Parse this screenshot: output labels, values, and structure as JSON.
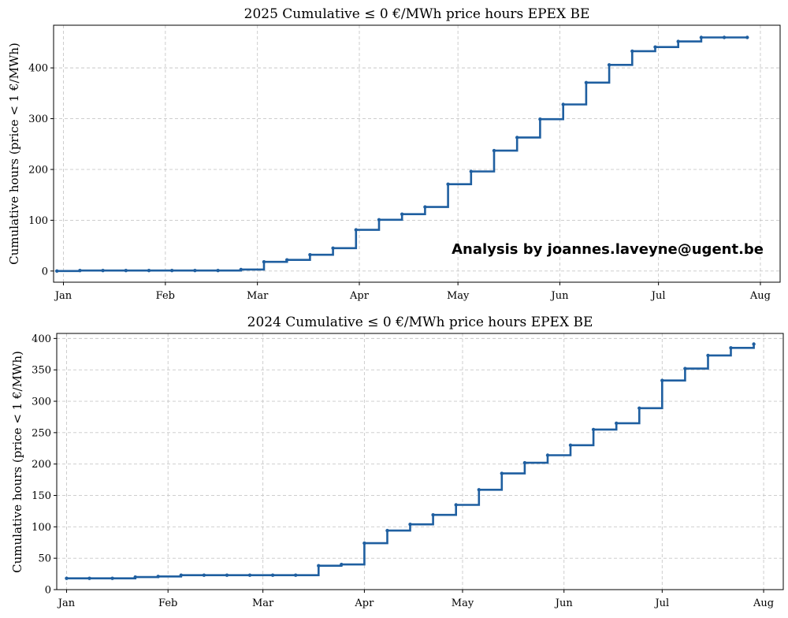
{
  "chart_data": [
    {
      "type": "line",
      "step": "post",
      "title": "2025 Cumulative ≤ 0 €/MWh price hours EPEX BE",
      "xlabel": "",
      "ylabel": "Cumulative hours (price < 1 €/MWh)",
      "x_tick_labels": [
        "Jan",
        "Feb",
        "Mar",
        "Apr",
        "May",
        "Jun",
        "Jul",
        "Aug"
      ],
      "y_ticks": [
        0,
        100,
        200,
        300,
        400
      ],
      "xlim": [
        "2024-12-29",
        "2025-08-07"
      ],
      "ylim": [
        -22,
        484
      ],
      "grid": true,
      "annotation": "Analysis by joannes.laveyne@ugent.be",
      "series": [
        {
          "color": "#1f5fa0",
          "x": [
            "2024-12-30",
            "2025-01-06",
            "2025-01-13",
            "2025-01-20",
            "2025-01-27",
            "2025-02-03",
            "2025-02-10",
            "2025-02-17",
            "2025-02-24",
            "2025-03-03",
            "2025-03-10",
            "2025-03-17",
            "2025-03-24",
            "2025-03-31",
            "2025-04-07",
            "2025-04-14",
            "2025-04-21",
            "2025-04-28",
            "2025-05-05",
            "2025-05-12",
            "2025-05-19",
            "2025-05-26",
            "2025-06-02",
            "2025-06-09",
            "2025-06-16",
            "2025-06-23",
            "2025-06-30",
            "2025-07-07",
            "2025-07-14",
            "2025-07-21",
            "2025-07-28"
          ],
          "y": [
            0,
            1,
            1,
            1,
            1,
            1,
            1,
            1,
            3,
            18,
            22,
            32,
            45,
            81,
            101,
            112,
            126,
            171,
            196,
            237,
            263,
            299,
            328,
            371,
            406,
            433,
            441,
            452,
            460,
            460,
            460
          ]
        }
      ]
    },
    {
      "type": "line",
      "step": "post",
      "title": "2024 Cumulative ≤ 0 €/MWh price hours EPEX BE",
      "xlabel": "",
      "ylabel": "Cumulative hours (price < 1 €/MWh)",
      "x_tick_labels": [
        "Jan",
        "Feb",
        "Mar",
        "Apr",
        "May",
        "Jun",
        "Jul",
        "Aug"
      ],
      "y_ticks": [
        0,
        50,
        100,
        150,
        200,
        250,
        300,
        350,
        400
      ],
      "xlim": [
        "2023-12-29",
        "2024-08-07"
      ],
      "ylim": [
        0,
        408
      ],
      "grid": true,
      "series": [
        {
          "color": "#1f5fa0",
          "x": [
            "2024-01-01",
            "2024-01-08",
            "2024-01-15",
            "2024-01-22",
            "2024-01-29",
            "2024-02-05",
            "2024-02-12",
            "2024-02-19",
            "2024-02-26",
            "2024-03-04",
            "2024-03-11",
            "2024-03-18",
            "2024-03-25",
            "2024-04-01",
            "2024-04-08",
            "2024-04-15",
            "2024-04-22",
            "2024-04-29",
            "2024-05-06",
            "2024-05-13",
            "2024-05-20",
            "2024-05-27",
            "2024-06-03",
            "2024-06-10",
            "2024-06-17",
            "2024-06-24",
            "2024-07-01",
            "2024-07-08",
            "2024-07-15",
            "2024-07-22",
            "2024-07-29"
          ],
          "y": [
            18,
            18,
            18,
            20,
            21,
            23,
            23,
            23,
            23,
            23,
            23,
            38,
            40,
            74,
            94,
            104,
            119,
            135,
            159,
            185,
            202,
            214,
            230,
            255,
            265,
            289,
            333,
            352,
            373,
            385,
            391
          ]
        }
      ]
    }
  ]
}
